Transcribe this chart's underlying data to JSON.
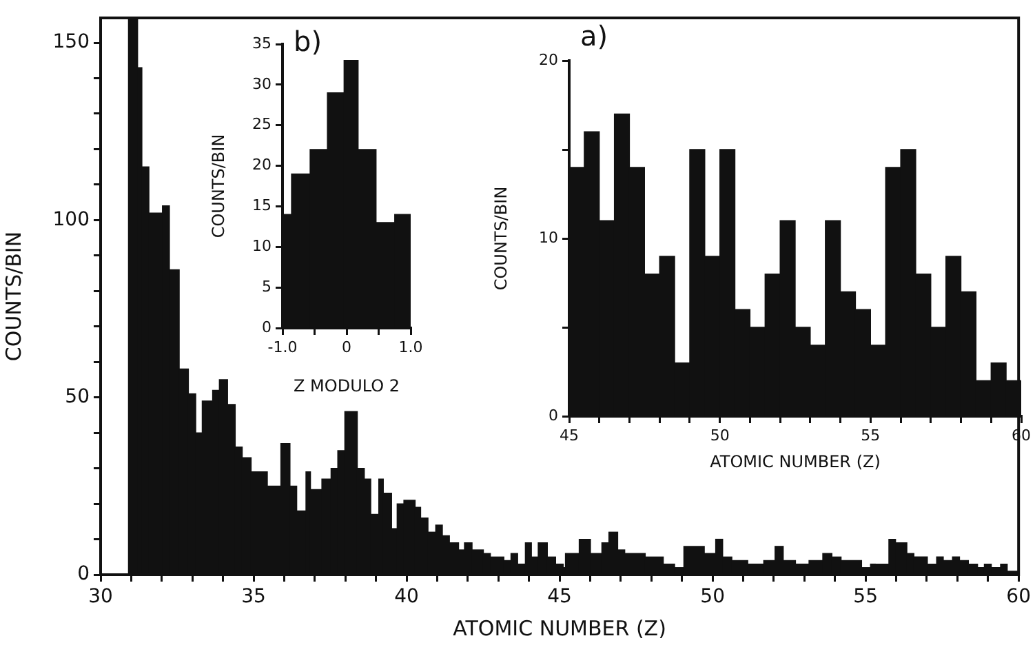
{
  "chart_data": [
    {
      "type": "histogram",
      "xlabel": "ATOMIC NUMBER (Z)",
      "ylabel": "COUNTS/BIN",
      "color": "#111111",
      "grid": false,
      "bins": [
        30.91,
        31.21,
        31.35,
        31.58,
        32.02,
        32.25,
        32.57,
        32.87,
        33.11,
        33.32,
        33.66,
        33.88,
        34.15,
        34.4,
        34.63,
        34.92,
        35.45,
        35.89,
        36.19,
        36.41,
        36.71,
        36.86,
        37.23,
        37.53,
        37.75,
        37.98,
        38.39,
        38.62,
        38.83,
        39.09,
        39.24,
        39.51,
        39.69,
        39.91,
        40.28,
        40.46,
        40.7,
        40.95,
        41.17,
        41.4,
        41.7,
        41.89,
        42.14,
        42.51,
        42.74,
        43.18,
        43.41,
        43.63,
        43.88,
        44.08,
        44.3,
        44.6,
        44.87,
        45.12,
        45.19,
        45.64,
        46.01,
        46.38,
        46.61,
        46.9,
        47.13,
        47.8,
        48.39,
        48.76,
        49.06,
        49.73,
        50.1,
        50.33,
        50.63,
        51.15,
        51.67,
        52.04,
        52.31,
        52.71,
        53.15,
        53.6,
        53.9,
        54.2,
        54.87,
        55.16,
        55.76,
        55.98,
        56.35,
        56.58,
        57.02,
        57.32,
        57.54,
        57.84,
        58.07,
        58.36,
        58.66,
        58.88,
        59.11,
        59.41,
        59.63,
        60
      ],
      "values": [
        157,
        143,
        115,
        102,
        104,
        86,
        58,
        51,
        40,
        49,
        52,
        55,
        48,
        36,
        33,
        29,
        25,
        37,
        25,
        18,
        29,
        24,
        27,
        30,
        35,
        46,
        30,
        27,
        17,
        27,
        23,
        13,
        20,
        21,
        19,
        16,
        12,
        14,
        11,
        9,
        7,
        9,
        7,
        6,
        5,
        4,
        6,
        3,
        9,
        5,
        9,
        5,
        3,
        2,
        6,
        10,
        6,
        9,
        12,
        7,
        6,
        5,
        3,
        2,
        8,
        6,
        10,
        5,
        4,
        3,
        4,
        8,
        4,
        3,
        4,
        6,
        5,
        4,
        2,
        3,
        10,
        9,
        6,
        5,
        3,
        5,
        4,
        5,
        4,
        3,
        2,
        3,
        2,
        3,
        1
      ],
      "xlim": [
        30,
        60
      ],
      "xticks": [
        30,
        {
          "value": 31,
          "label": null
        },
        {
          "value": 32,
          "label": null
        },
        {
          "value": 33,
          "label": null
        },
        {
          "value": 34,
          "label": null
        },
        35,
        {
          "value": 36,
          "label": null
        },
        {
          "value": 37,
          "label": null
        },
        {
          "value": 38,
          "label": null
        },
        {
          "value": 39,
          "label": null
        },
        40,
        {
          "value": 41,
          "label": null
        },
        {
          "value": 42,
          "label": null
        },
        {
          "value": 43,
          "label": null
        },
        {
          "value": 44,
          "label": null
        },
        45,
        {
          "value": 46,
          "label": null
        },
        {
          "value": 47,
          "label": null
        },
        {
          "value": 48,
          "label": null
        },
        {
          "value": 49,
          "label": null
        },
        50,
        {
          "value": 51,
          "label": null
        },
        {
          "value": 52,
          "label": null
        },
        {
          "value": 53,
          "label": null
        },
        {
          "value": 54,
          "label": null
        },
        55,
        {
          "value": 56,
          "label": null
        },
        {
          "value": 57,
          "label": null
        },
        {
          "value": 58,
          "label": null
        },
        {
          "value": 59,
          "label": null
        },
        60
      ],
      "ylim": [
        0,
        157
      ],
      "yticks": [
        0,
        {
          "value": 10,
          "label": null
        },
        {
          "value": 20,
          "label": null
        },
        {
          "value": 30,
          "label": null
        },
        {
          "value": 40,
          "label": null
        },
        50,
        {
          "value": 60,
          "label": null
        },
        {
          "value": 70,
          "label": null
        },
        {
          "value": 80,
          "label": null
        },
        {
          "value": 90,
          "label": null
        },
        100,
        {
          "value": 110,
          "label": null
        },
        {
          "value": 120,
          "label": null
        },
        {
          "value": 130,
          "label": null
        },
        {
          "value": 140,
          "label": null
        },
        150
      ]
    },
    {
      "type": "histogram",
      "title": "b)",
      "xlabel": "Z MODULO 2",
      "ylabel": "COUNTS/BIN",
      "color": "#111111",
      "grid": false,
      "bins": [
        -1,
        -0.86,
        -0.57,
        -0.3,
        -0.04,
        0.18,
        0.46,
        0.75,
        1
      ],
      "values": [
        14,
        19,
        22,
        29,
        33,
        22,
        13,
        14
      ],
      "xlim": [
        -1,
        1
      ],
      "xticks": [
        {
          "value": -1,
          "label": "-1.0"
        },
        {
          "value": -0.5,
          "label": null
        },
        0,
        {
          "value": 0.5,
          "label": null
        },
        {
          "value": 1,
          "label": "1.0"
        }
      ],
      "ylim": [
        0,
        35
      ],
      "yticks": [
        0,
        5,
        10,
        15,
        20,
        25,
        30,
        35
      ]
    },
    {
      "type": "histogram",
      "title": "a)",
      "xlabel": "ATOMIC NUMBER (Z)",
      "ylabel": "COUNTS/BIN",
      "color": "#111111",
      "grid": false,
      "bins": [
        45,
        45.5,
        46,
        46.5,
        47,
        47.5,
        48,
        48.5,
        49,
        49.5,
        50,
        50.5,
        51,
        51.5,
        52,
        52.5,
        53,
        53.5,
        54,
        54.5,
        55,
        55.5,
        56,
        56.5,
        57,
        57.5,
        58,
        58.5,
        59,
        59.5,
        60
      ],
      "values": [
        14,
        16,
        11,
        17,
        14,
        8,
        9,
        3,
        15,
        9,
        15,
        6,
        5,
        8,
        11,
        5,
        4,
        11,
        7,
        6,
        4,
        14,
        15,
        8,
        5,
        9,
        7,
        2,
        3,
        2
      ],
      "xlim": [
        45,
        60
      ],
      "xticks": [
        45,
        {
          "value": 46,
          "label": null
        },
        {
          "value": 47,
          "label": null
        },
        {
          "value": 48,
          "label": null
        },
        {
          "value": 49,
          "label": null
        },
        50,
        {
          "value": 51,
          "label": null
        },
        {
          "value": 52,
          "label": null
        },
        {
          "value": 53,
          "label": null
        },
        {
          "value": 54,
          "label": null
        },
        55,
        {
          "value": 56,
          "label": null
        },
        {
          "value": 57,
          "label": null
        },
        {
          "value": 58,
          "label": null
        },
        {
          "value": 59,
          "label": null
        },
        60
      ],
      "ylim": [
        0,
        20
      ],
      "yticks": [
        0,
        {
          "value": 5,
          "label": null
        },
        10,
        {
          "value": 15,
          "label": null
        },
        20
      ]
    }
  ]
}
